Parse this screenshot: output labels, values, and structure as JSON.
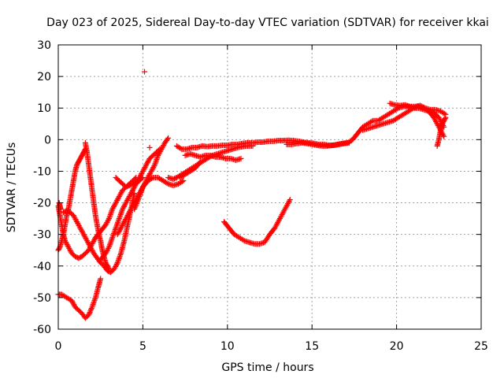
{
  "chart_data": {
    "type": "scatter",
    "title": "Day 023 of 2025, Sidereal Day-to-day VTEC variation (SDTVAR) for receiver kkai",
    "xlabel": "GPS time / hours",
    "ylabel": "SDTVAR / TECUs",
    "xlim": [
      0,
      25
    ],
    "ylim": [
      -60,
      30
    ],
    "xticks": [
      "0",
      "5",
      "10",
      "15",
      "20",
      "25"
    ],
    "yticks": [
      "-60",
      "-50",
      "-40",
      "-30",
      "-20",
      "-10",
      "0",
      "10",
      "20",
      "30"
    ],
    "grid": true,
    "marker": "+",
    "color": "#ff0000",
    "series": [
      {
        "x": [
          0.0,
          0.2,
          0.5,
          0.8,
          1.0,
          1.2,
          1.4,
          1.6,
          1.8,
          2.0,
          2.2,
          2.4,
          2.5
        ],
        "y": [
          -49,
          -49,
          -50,
          -51,
          -53,
          -54,
          -55,
          -56.5,
          -55.5,
          -53,
          -50,
          -46,
          -44
        ]
      },
      {
        "x": [
          0.0,
          0.1,
          0.2,
          0.3,
          0.4,
          0.6,
          0.8,
          1.0,
          1.2,
          1.4,
          1.6,
          1.8,
          2.0,
          2.2,
          2.5,
          2.8,
          3.0,
          3.2,
          3.4,
          3.6,
          3.8,
          4.0,
          4.2,
          4.4,
          4.6,
          4.8,
          5.0
        ],
        "y": [
          -21,
          -24,
          -27,
          -30,
          -32,
          -34,
          -36,
          -37,
          -37.5,
          -37,
          -36,
          -35,
          -33,
          -31,
          -29,
          -27,
          -25,
          -22,
          -20,
          -18,
          -16,
          -15,
          -14.5,
          -14,
          -13.5,
          -13,
          -12
        ]
      },
      {
        "x": [
          0.0,
          0.1,
          0.2,
          0.3,
          0.4,
          0.5,
          0.6,
          0.7,
          0.8,
          0.9,
          1.0,
          1.1,
          1.2,
          1.3,
          1.4,
          1.5,
          1.6
        ],
        "y": [
          -35,
          -34,
          -32,
          -30,
          -27,
          -24,
          -22,
          -19,
          -16,
          -13,
          -10,
          -8,
          -7,
          -6,
          -5,
          -4,
          -3
        ]
      },
      {
        "x": [
          0.3,
          0.5,
          0.7,
          0.9,
          1.1,
          1.3,
          1.5,
          1.7,
          1.9,
          2.1,
          2.3,
          2.5,
          2.7,
          2.9,
          3.1,
          3.3,
          3.5,
          3.7,
          3.9,
          4.1,
          4.3,
          4.5
        ],
        "y": [
          -23,
          -22.5,
          -23,
          -24,
          -26,
          -28,
          -30,
          -32,
          -34,
          -36,
          -37.5,
          -39,
          -40,
          -41.5,
          -42,
          -41,
          -39,
          -36,
          -32,
          -27,
          -22,
          -17
        ]
      },
      {
        "x": [
          1.6,
          1.7,
          1.8,
          1.9,
          2.0,
          2.1,
          2.2,
          2.3,
          2.4,
          2.5,
          2.6,
          2.7,
          2.8,
          2.9,
          3.0
        ],
        "y": [
          -1,
          -4,
          -8,
          -12,
          -16,
          -20,
          -24,
          -27,
          -30,
          -32,
          -35,
          -37,
          -39,
          -40,
          -41
        ]
      },
      {
        "x": [
          2.5,
          2.8,
          3.0,
          3.2,
          3.4,
          3.6,
          3.8,
          4.0,
          4.2,
          4.4,
          4.6,
          4.8,
          5.0,
          5.2,
          5.4,
          5.6,
          5.8,
          6.0
        ],
        "y": [
          -38,
          -36,
          -34,
          -31,
          -28,
          -25,
          -22,
          -20,
          -18,
          -16,
          -14,
          -12,
          -10,
          -8,
          -6,
          -5,
          -4,
          -3
        ]
      },
      {
        "x": [
          3.5,
          3.7,
          3.9,
          4.1,
          4.3,
          4.5,
          4.7,
          4.9,
          5.1,
          5.3,
          5.5,
          5.7,
          5.9,
          6.1,
          6.3,
          6.5
        ],
        "y": [
          -30,
          -28,
          -26,
          -24,
          -22,
          -20,
          -18,
          -16,
          -14,
          -12,
          -10,
          -8,
          -5,
          -3,
          -1,
          0.5
        ]
      },
      {
        "x": [
          3.4,
          3.6,
          3.8,
          4.0,
          4.2,
          4.4,
          4.6
        ],
        "y": [
          -12,
          -13,
          -14,
          -15,
          -14,
          -13,
          -12
        ]
      },
      {
        "x": [
          4.5,
          4.8,
          5.0,
          5.3,
          5.6,
          5.9,
          6.2,
          6.5,
          6.8,
          7.1,
          7.4
        ],
        "y": [
          -22,
          -18,
          -15,
          -13,
          -12,
          -12,
          -13,
          -14,
          -14.5,
          -14,
          -13
        ]
      },
      {
        "x": [
          6.5,
          6.8,
          7.0,
          7.3,
          7.6,
          7.9,
          8.2,
          8.5,
          8.8,
          9.1,
          9.4,
          9.7,
          10.0,
          10.3,
          10.6,
          10.9,
          11.2,
          11.5
        ],
        "y": [
          -12,
          -12.5,
          -12,
          -11,
          -10,
          -9,
          -8,
          -7,
          -6,
          -5,
          -4.5,
          -4,
          -3.5,
          -3,
          -2.5,
          -2.2,
          -2,
          -2
        ]
      },
      {
        "x": [
          7.0,
          7.3,
          7.6,
          7.9,
          8.2,
          8.5,
          8.8,
          9.1,
          9.4,
          9.7,
          10.0,
          10.3,
          10.6,
          10.9,
          11.2,
          11.5,
          11.8,
          12.1,
          12.4,
          12.7,
          13.0,
          13.3,
          13.6,
          13.9,
          14.2,
          14.5,
          14.8,
          15.1,
          15.4,
          15.7,
          16.0,
          16.3,
          16.6,
          16.9,
          17.2
        ],
        "y": [
          -2,
          -3,
          -3,
          -2.5,
          -2.5,
          -2,
          -2.2,
          -2,
          -2,
          -1.8,
          -1.8,
          -1.5,
          -1.5,
          -1.2,
          -1,
          -1,
          -0.8,
          -0.8,
          -0.5,
          -0.5,
          -0.3,
          -0.3,
          -0.2,
          -0.3,
          -0.5,
          -0.8,
          -1,
          -1.2,
          -1.5,
          -1.5,
          -1.8,
          -1.8,
          -1.5,
          -1.2,
          -1
        ]
      },
      {
        "x": [
          7.5,
          7.8,
          8.1,
          8.4,
          8.7,
          9.0,
          9.3,
          9.6,
          9.9,
          10.2,
          10.5,
          10.8
        ],
        "y": [
          -5,
          -4.5,
          -5,
          -5.5,
          -5,
          -5,
          -5.5,
          -5.5,
          -6,
          -6,
          -6.5,
          -6
        ]
      },
      {
        "x": [
          7.2,
          7.5,
          7.8,
          8.1,
          8.4
        ],
        "y": [
          -12,
          -11,
          -10,
          -9,
          -7
        ]
      },
      {
        "x": [
          9.8,
          10.1,
          10.4,
          10.7,
          11.0,
          11.3,
          11.6,
          11.9,
          12.2,
          12.5,
          12.8,
          13.1,
          13.4,
          13.7
        ],
        "y": [
          -26,
          -28,
          -30,
          -31,
          -32,
          -32.5,
          -33,
          -33,
          -32.5,
          -30,
          -28,
          -25,
          -22,
          -19
        ]
      },
      {
        "x": [
          13.5,
          13.8,
          14.1,
          14.4,
          14.7,
          15.0,
          15.3,
          15.6,
          15.9,
          16.2,
          16.5,
          16.8,
          17.1,
          17.4,
          17.7,
          18.0,
          18.3,
          18.6,
          18.9,
          19.2,
          19.5,
          19.8,
          20.1,
          20.4,
          20.7,
          21.0,
          21.3,
          21.6,
          21.9,
          22.2,
          22.5,
          22.8
        ],
        "y": [
          -1.5,
          -1.5,
          -1.2,
          -1,
          -1.2,
          -1.5,
          -1.8,
          -2,
          -2,
          -1.8,
          -1.5,
          -1.2,
          -1,
          0,
          2,
          4,
          5,
          6,
          6,
          7,
          8,
          9,
          10,
          10.5,
          10.5,
          10,
          10,
          9.5,
          9,
          8.5,
          7,
          4
        ]
      },
      {
        "x": [
          18.0,
          18.3,
          18.6,
          18.9,
          19.2,
          19.5,
          19.8,
          20.1,
          20.4,
          20.7,
          21.0,
          21.3,
          21.6,
          21.9,
          22.2,
          22.5,
          22.8
        ],
        "y": [
          3,
          3.5,
          4,
          4.5,
          5,
          5.5,
          6,
          7,
          8,
          9,
          10,
          10.5,
          10,
          9,
          7,
          4,
          1
        ]
      },
      {
        "x": [
          19.6,
          19.9,
          20.2,
          20.5,
          20.8,
          21.1,
          21.4,
          21.7,
          22.0,
          22.3,
          22.6,
          22.9
        ],
        "y": [
          11.5,
          11,
          10.8,
          11,
          10.5,
          10.5,
          10.8,
          10,
          9.5,
          9.5,
          9,
          8
        ]
      },
      {
        "x": [
          22.4,
          22.5,
          22.6,
          22.7,
          22.8,
          22.9
        ],
        "y": [
          -2,
          0,
          3,
          5,
          6,
          7
        ]
      },
      {
        "x": [
          5.1
        ],
        "y": [
          21.5
        ]
      },
      {
        "x": [
          5.4
        ],
        "y": [
          -2.5
        ]
      },
      {
        "x": [
          0.05,
          0.1,
          0.15
        ],
        "y": [
          -20,
          -21,
          -22
        ]
      }
    ]
  }
}
